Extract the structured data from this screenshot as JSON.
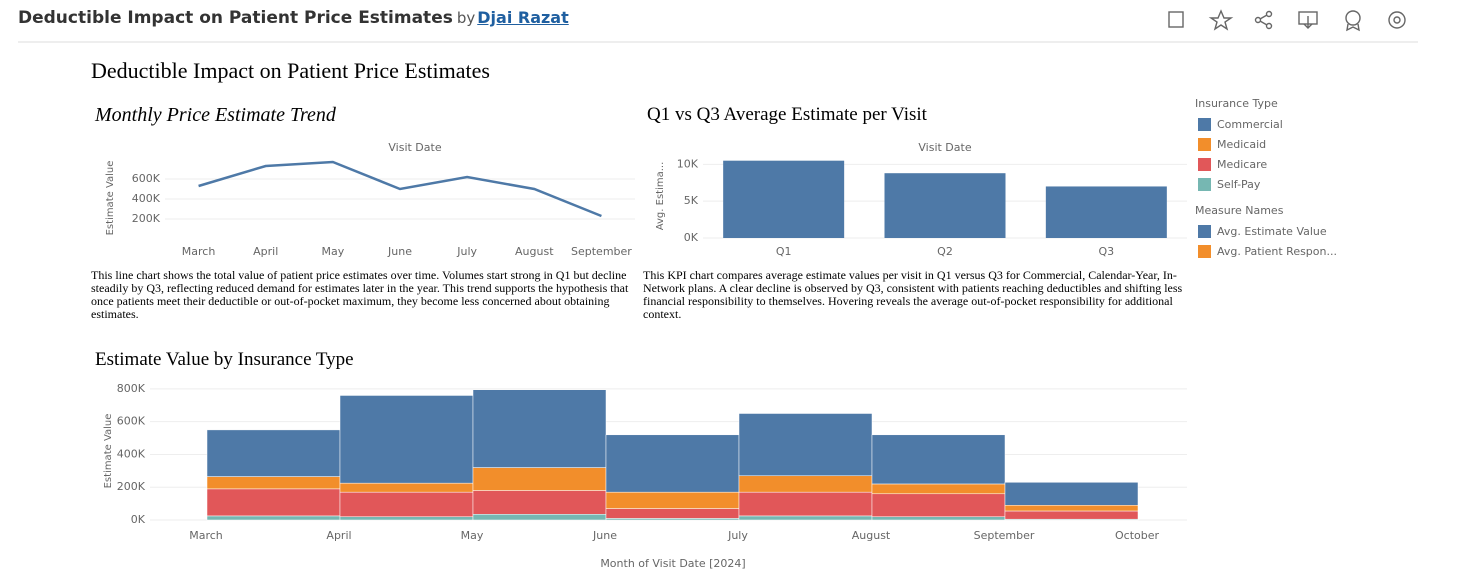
{
  "header": {
    "title": "Deductible Impact on Patient Price Estimates",
    "by": "by",
    "author": "Djai Razat"
  },
  "dashboard_title": "Deductible Impact on Patient Price Estimates",
  "chart_data": [
    {
      "type": "line",
      "title": "Monthly Price Estimate Trend",
      "x_title": "Visit Date",
      "y_title": "Estimate Value",
      "categories": [
        "March",
        "April",
        "May",
        "June",
        "July",
        "August",
        "September"
      ],
      "values": [
        530000,
        730000,
        770000,
        500000,
        620000,
        500000,
        230000
      ],
      "color": "#4e79a7",
      "ylim": [
        0,
        820000
      ],
      "yticks": [
        {
          "value": 200000,
          "label": "200K"
        },
        {
          "value": 400000,
          "label": "400K"
        },
        {
          "value": 600000,
          "label": "600K"
        }
      ],
      "grid": true,
      "description": "This line chart shows the total value of patient price estimates over time. Volumes start strong in Q1 but decline steadily by Q3, reflecting reduced demand for estimates later in the year. This trend supports the hypothesis that once patients meet their deductible or out-of-pocket maximum, they become less concerned about obtaining estimates."
    },
    {
      "type": "bar",
      "title": "Q1 vs Q3 Average Estimate per Visit",
      "x_title": "Visit Date",
      "y_title": "Avg. Estima...",
      "categories": [
        "Q1",
        "Q2",
        "Q3"
      ],
      "series": [
        {
          "name": "Avg. Estimate Value",
          "color": "#4e79a7",
          "values": [
            10500,
            8800,
            7000
          ]
        }
      ],
      "legend_title": "Measure Names",
      "legend_extra": [
        {
          "name": "Avg. Patient Respon...",
          "color": "#f28e2b"
        }
      ],
      "ylim": [
        0,
        11000
      ],
      "yticks": [
        {
          "value": 0,
          "label": "0K"
        },
        {
          "value": 5000,
          "label": "5K"
        },
        {
          "value": 10000,
          "label": "10K"
        }
      ],
      "grid": true,
      "description": "This KPI chart compares average estimate values per visit in Q1 versus Q3 for Commercial, Calendar-Year, In-Network plans. A clear decline is observed by Q3, consistent with patients reaching deductibles and shifting less financial responsibility to themselves. Hovering reveals the average out-of-pocket responsibility for additional context."
    },
    {
      "type": "stacked_bar",
      "title": "Estimate Value by Insurance Type",
      "x_title": "Month of Visit Date [2024]",
      "y_title": "Estimate Value",
      "xticks": [
        "March",
        "April",
        "May",
        "June",
        "July",
        "August",
        "September",
        "October"
      ],
      "legend_title": "Insurance Type",
      "series": [
        {
          "name": "Commercial",
          "color": "#4e79a7",
          "values": [
            285000,
            535000,
            475000,
            350000,
            380000,
            300000,
            140000
          ]
        },
        {
          "name": "Medicaid",
          "color": "#f28e2b",
          "values": [
            75000,
            55000,
            140000,
            100000,
            100000,
            60000,
            35000
          ]
        },
        {
          "name": "Medicare",
          "color": "#e15759",
          "values": [
            165000,
            150000,
            145000,
            60000,
            145000,
            140000,
            50000
          ]
        },
        {
          "name": "Self-Pay",
          "color": "#76b7b2",
          "values": [
            25000,
            20000,
            35000,
            10000,
            25000,
            20000,
            5000
          ]
        }
      ],
      "ylim": [
        0,
        830000
      ],
      "yticks": [
        {
          "value": 0,
          "label": "0K"
        },
        {
          "value": 200000,
          "label": "200K"
        },
        {
          "value": 400000,
          "label": "400K"
        },
        {
          "value": 600000,
          "label": "600K"
        },
        {
          "value": 800000,
          "label": "800K"
        }
      ],
      "grid": true
    }
  ]
}
